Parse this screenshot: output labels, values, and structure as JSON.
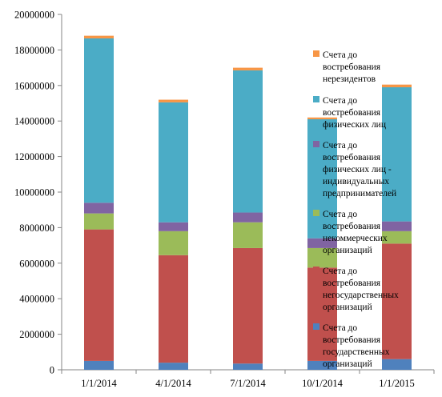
{
  "chart_data": {
    "type": "bar",
    "stacked": true,
    "categories": [
      "1/1/2014",
      "4/1/2014",
      "7/1/2014",
      "10/1/2014",
      "1/1/2015"
    ],
    "ylim": [
      0,
      20000000
    ],
    "yticks": [
      "0",
      "2000000",
      "4000000",
      "6000000",
      "8000000",
      "10000000",
      "12000000",
      "14000000",
      "16000000",
      "18000000",
      "20000000"
    ],
    "grid": false,
    "legend_position": "right",
    "series": [
      {
        "name": "Счета до востребования государственных организаций",
        "color": "#4F81BD",
        "values": [
          500000,
          400000,
          350000,
          500000,
          600000
        ]
      },
      {
        "name": "Счета до востребования негосударственных организаций",
        "color": "#C0504D",
        "values": [
          7400000,
          6050000,
          6500000,
          5250000,
          6500000
        ]
      },
      {
        "name": "Счета до востребования некоммерческих организаций",
        "color": "#9BBB59",
        "values": [
          900000,
          1350000,
          1450000,
          1100000,
          700000
        ]
      },
      {
        "name": "Счета до востребования физических лиц - индивидуальных предпринимателей",
        "color": "#8064A2",
        "values": [
          600000,
          500000,
          550000,
          550000,
          550000
        ]
      },
      {
        "name": "Счета до востребования физических лиц",
        "color": "#4BACC6",
        "values": [
          9250000,
          6750000,
          8000000,
          6700000,
          7550000
        ]
      },
      {
        "name": "Счета до востребования нерезидентов",
        "color": "#F79646",
        "values": [
          150000,
          150000,
          150000,
          100000,
          150000
        ]
      }
    ]
  }
}
